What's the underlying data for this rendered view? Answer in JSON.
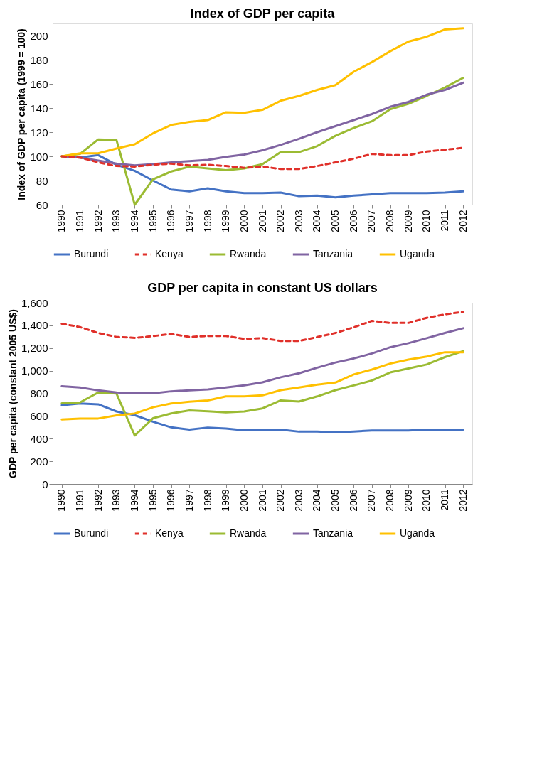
{
  "chart_data": [
    {
      "type": "line",
      "title": "Index of GDP per capita",
      "ylabel": "Index of GDP per capita  (1999 = 100)",
      "categories": [
        "1990",
        "1991",
        "1992",
        "1993",
        "1994",
        "1995",
        "1996",
        "1997",
        "1998",
        "1999",
        "2000",
        "2001",
        "2002",
        "2003",
        "2004",
        "2005",
        "2006",
        "2007",
        "2008",
        "2009",
        "2010",
        "2011",
        "2012"
      ],
      "ylim": [
        60,
        210
      ],
      "yticks": [
        60,
        80,
        100,
        120,
        140,
        160,
        180,
        200
      ],
      "grid": false,
      "legend": "bottom",
      "marker": "none",
      "series": [
        {
          "name": "Burundi",
          "color": "#4472c4",
          "line_style": "solid",
          "values": [
            100,
            99,
            101,
            93,
            88,
            80,
            72.5,
            71,
            73.5,
            71,
            69.5,
            69.5,
            70,
            67,
            67.5,
            66,
            67.5,
            68.5,
            69.5,
            69.5,
            69.5,
            70,
            71
          ]
        },
        {
          "name": "Kenya",
          "color": "#e0302a",
          "line_style": "dashed",
          "values": [
            100,
            99,
            95,
            92,
            91.5,
            93,
            94,
            92.5,
            93,
            92,
            90.5,
            91.5,
            89.5,
            89.5,
            92,
            95,
            98,
            102,
            101,
            101,
            104,
            105.5,
            107
          ]
        },
        {
          "name": "Rwanda",
          "color": "#9bbb33",
          "line_style": "solid",
          "values": [
            100,
            102,
            114,
            113.5,
            60,
            81,
            87.5,
            91.5,
            90,
            88.5,
            90,
            93.5,
            103.5,
            103.5,
            108.5,
            117,
            123.5,
            129,
            139,
            143.5,
            150,
            157,
            165
          ]
        },
        {
          "name": "Tanzania",
          "color": "#8064a2",
          "line_style": "solid",
          "values": [
            100,
            99,
            96.5,
            94,
            92.5,
            93.5,
            95,
            96,
            97,
            99.5,
            101.5,
            105,
            109.5,
            114.5,
            120,
            125,
            130,
            135,
            141,
            145,
            151,
            155,
            161
          ]
        },
        {
          "name": "Uganda",
          "color": "#ffc000",
          "line_style": "solid",
          "values": [
            100,
            102.5,
            102.5,
            106.5,
            110,
            119,
            126,
            128.5,
            130,
            136.5,
            136,
            138.5,
            146,
            150,
            155,
            159,
            170,
            178,
            187,
            195,
            199,
            205,
            206
          ]
        }
      ]
    },
    {
      "type": "line",
      "title": "GDP per capita in constant US dollars",
      "ylabel": "GDP per capita  (constant  2005 US$)",
      "categories": [
        "1990",
        "1991",
        "1992",
        "1993",
        "1994",
        "1995",
        "1996",
        "1997",
        "1998",
        "1999",
        "2000",
        "2001",
        "2002",
        "2003",
        "2004",
        "2005",
        "2006",
        "2007",
        "2008",
        "2009",
        "2010",
        "2011",
        "2012"
      ],
      "ylim": [
        0,
        1600
      ],
      "yticks": [
        0,
        200,
        400,
        600,
        800,
        {
          "value": 1000,
          "label": "1,000"
        },
        {
          "value": 1200,
          "label": "1,200"
        },
        {
          "value": 1400,
          "label": "1,400"
        },
        {
          "value": 1600,
          "label": "1,600"
        }
      ],
      "grid": false,
      "legend": "bottom",
      "marker": "none",
      "series": [
        {
          "name": "Burundi",
          "color": "#4472c4",
          "line_style": "solid",
          "values": [
            695,
            710,
            703,
            640,
            607,
            550,
            500,
            480,
            498,
            490,
            473,
            473,
            480,
            462,
            462,
            455,
            463,
            472,
            472,
            472,
            480,
            480,
            480
          ]
        },
        {
          "name": "Kenya",
          "color": "#e0302a",
          "line_style": "dashed",
          "values": [
            1415,
            1385,
            1333,
            1298,
            1290,
            1305,
            1325,
            1298,
            1307,
            1307,
            1280,
            1288,
            1263,
            1263,
            1297,
            1333,
            1383,
            1440,
            1422,
            1422,
            1467,
            1497,
            1520
          ]
        },
        {
          "name": "Rwanda",
          "color": "#9bbb33",
          "line_style": "solid",
          "values": [
            712,
            720,
            808,
            798,
            428,
            580,
            623,
            650,
            642,
            632,
            640,
            667,
            738,
            728,
            773,
            828,
            870,
            913,
            985,
            1020,
            1055,
            1120,
            1173
          ]
        },
        {
          "name": "Tanzania",
          "color": "#8064a2",
          "line_style": "solid",
          "values": [
            862,
            852,
            826,
            808,
            800,
            800,
            818,
            826,
            835,
            852,
            870,
            897,
            942,
            977,
            1027,
            1072,
            1108,
            1152,
            1207,
            1243,
            1287,
            1333,
            1375
          ]
        },
        {
          "name": "Uganda",
          "color": "#ffc000",
          "line_style": "solid",
          "values": [
            570,
            578,
            578,
            605,
            622,
            677,
            710,
            727,
            737,
            773,
            773,
            782,
            828,
            852,
            877,
            895,
            967,
            1010,
            1063,
            1098,
            1125,
            1163,
            1163
          ]
        }
      ]
    }
  ]
}
